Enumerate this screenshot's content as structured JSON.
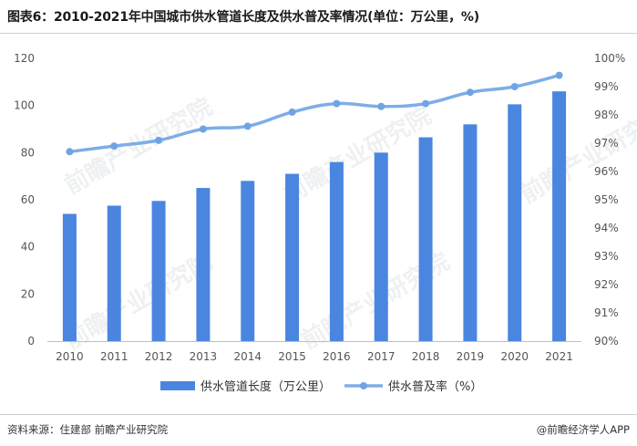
{
  "title": "图表6：2010-2021年中国城市供水管道长度及供水普及率情况(单位：万公里，%)",
  "footer": {
    "source": "资料来源：住建部 前瞻产业研究院",
    "brand": "@前瞻经济学人APP"
  },
  "watermark": "前瞻产业研究院",
  "colors": {
    "bar": "#4a86e0",
    "line": "#7daee6",
    "marker": "#6fa3e4"
  },
  "chart_data": {
    "type": "bar",
    "categories": [
      "2010",
      "2011",
      "2012",
      "2013",
      "2014",
      "2015",
      "2016",
      "2017",
      "2018",
      "2019",
      "2020",
      "2021"
    ],
    "series": [
      {
        "name": "供水管道长度（万公里）",
        "type": "bar",
        "axis": "left",
        "values": [
          54,
          57.5,
          59.5,
          65,
          68,
          71,
          76,
          80,
          86.5,
          92,
          100.5,
          106
        ]
      },
      {
        "name": "供水普及率（%）",
        "type": "line",
        "axis": "right",
        "values": [
          96.7,
          96.9,
          97.1,
          97.5,
          97.6,
          98.1,
          98.4,
          98.3,
          98.4,
          98.8,
          99.0,
          99.4
        ]
      }
    ],
    "y_left": {
      "ylim": [
        0,
        120
      ],
      "ticks": [
        "0",
        "20",
        "40",
        "60",
        "80",
        "100",
        "120"
      ]
    },
    "y_right": {
      "ylim": [
        90,
        100
      ],
      "ticks": [
        "90%",
        "91%",
        "92%",
        "93%",
        "94%",
        "95%",
        "96%",
        "97%",
        "98%",
        "99%",
        "100%"
      ]
    },
    "grid": false,
    "legend_position": "bottom-center"
  }
}
